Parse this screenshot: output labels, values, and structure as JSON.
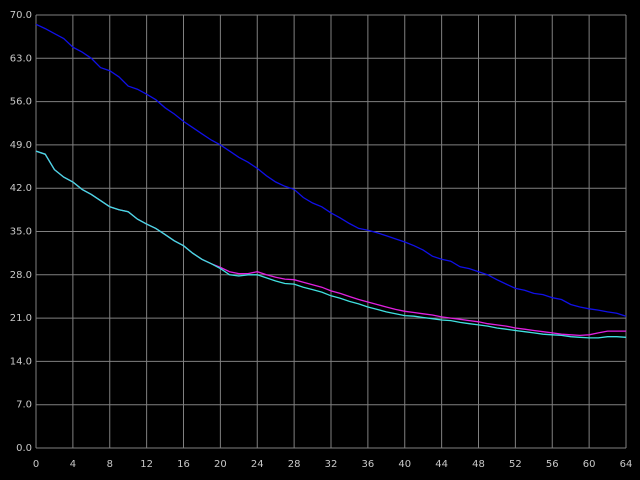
{
  "chart_data": {
    "type": "line",
    "x": [
      0,
      1,
      2,
      3,
      4,
      5,
      6,
      7,
      8,
      9,
      10,
      11,
      12,
      13,
      14,
      15,
      16,
      17,
      18,
      19,
      20,
      21,
      22,
      23,
      24,
      25,
      26,
      27,
      28,
      29,
      30,
      31,
      32,
      33,
      34,
      35,
      36,
      37,
      38,
      39,
      40,
      41,
      42,
      43,
      44,
      45,
      46,
      47,
      48,
      49,
      50,
      51,
      52,
      53,
      54,
      55,
      56,
      57,
      58,
      59,
      60,
      61,
      62,
      63,
      64
    ],
    "series": [
      {
        "color": "#1010e8",
        "values": [
          68.5,
          67.8,
          67,
          66.2,
          64.8,
          64,
          63,
          61.5,
          61,
          60,
          58.5,
          58,
          57.2,
          56.3,
          55,
          54,
          52.8,
          51.8,
          50.8,
          49.8,
          49,
          48,
          47,
          46.2,
          45.2,
          44,
          43,
          42.3,
          41.8,
          40.5,
          39.6,
          39,
          38,
          37.2,
          36.3,
          35.5,
          35.2,
          34.8,
          34.3,
          33.8,
          33.3,
          32.7,
          32,
          31,
          30.5,
          30.2,
          29.3,
          29,
          28.5,
          28,
          27.2,
          26.5,
          25.8,
          25.5,
          25,
          24.8,
          24.3,
          24,
          23.2,
          22.8,
          22.5,
          22.3,
          22,
          21.8,
          21.3
        ]
      },
      {
        "color": "#e020e0",
        "values": [
          48,
          47.5,
          45,
          43.8,
          43,
          41.8,
          41,
          40,
          39,
          38.5,
          38.2,
          37,
          36.2,
          35.5,
          34.5,
          33.5,
          32.7,
          31.5,
          30.5,
          29.8,
          29.2,
          28.5,
          28.2,
          28.2,
          28.5,
          28,
          27.6,
          27.3,
          27.2,
          26.8,
          26.4,
          26,
          25.4,
          25,
          24.5,
          24,
          23.6,
          23.2,
          22.8,
          22.4,
          22.1,
          21.9,
          21.7,
          21.5,
          21.2,
          21,
          20.8,
          20.6,
          20.4,
          20.1,
          19.9,
          19.7,
          19.4,
          19.2,
          19,
          18.8,
          18.6,
          18.4,
          18.3,
          18.2,
          18.3,
          18.6,
          18.9,
          18.9,
          18.9
        ]
      },
      {
        "color": "#40e0e0",
        "values": [
          48,
          47.5,
          45,
          43.8,
          43,
          41.8,
          41,
          40,
          39,
          38.5,
          38.2,
          37,
          36.2,
          35.5,
          34.5,
          33.5,
          32.7,
          31.5,
          30.5,
          29.8,
          29,
          28,
          27.8,
          28,
          28,
          27.5,
          27,
          26.6,
          26.5,
          26,
          25.6,
          25.2,
          24.6,
          24.2,
          23.7,
          23.3,
          22.8,
          22.4,
          22,
          21.7,
          21.4,
          21.3,
          21.1,
          20.9,
          20.7,
          20.6,
          20.3,
          20.1,
          19.9,
          19.7,
          19.4,
          19.2,
          19,
          18.8,
          18.6,
          18.4,
          18.3,
          18.2,
          18,
          17.9,
          17.8,
          17.8,
          18,
          18,
          17.9
        ]
      }
    ],
    "xlim": [
      0,
      64
    ],
    "xticks": [
      0,
      4,
      8,
      12,
      16,
      20,
      24,
      28,
      32,
      36,
      40,
      44,
      48,
      52,
      56,
      60,
      64
    ],
    "ylim": [
      0,
      70
    ],
    "yticks": [
      {
        "value": 0,
        "label": "0.0"
      },
      {
        "value": 7,
        "label": "7.0"
      },
      {
        "value": 14,
        "label": "14.0"
      },
      {
        "value": 21,
        "label": "21.0"
      },
      {
        "value": 28,
        "label": "28.0"
      },
      {
        "value": 35,
        "label": "35.0"
      },
      {
        "value": 42,
        "label": "42.0"
      },
      {
        "value": 49,
        "label": "49.0"
      },
      {
        "value": 56,
        "label": "56.0"
      },
      {
        "value": 63,
        "label": "63.0"
      },
      {
        "value": 70,
        "label": "70.0"
      }
    ],
    "grid": true
  }
}
